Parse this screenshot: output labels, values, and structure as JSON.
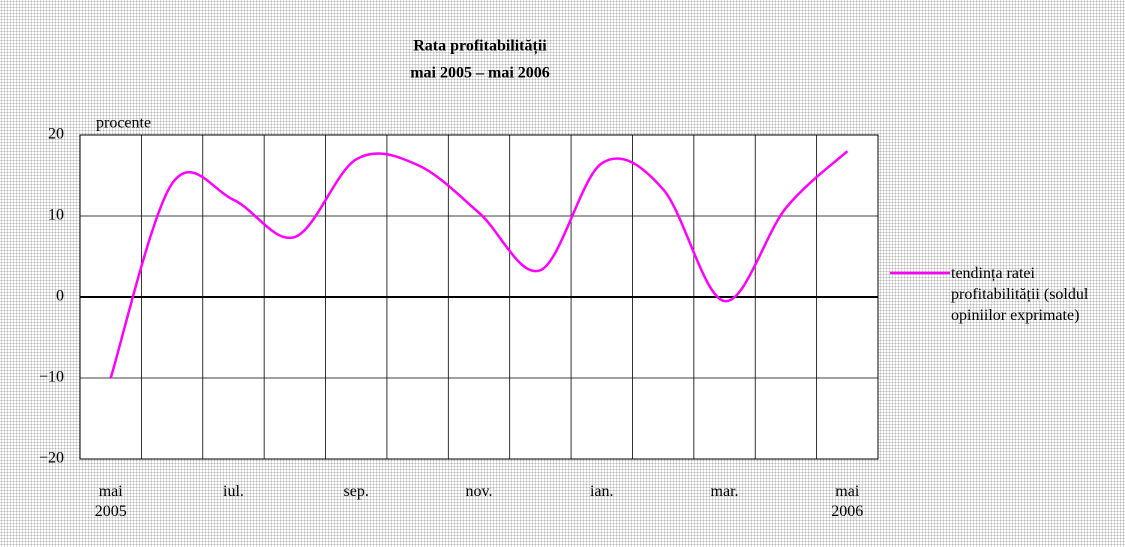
{
  "chart_data": {
    "type": "line",
    "title": "Rata profitabilității",
    "subtitle": "mai 2005 – mai 2006",
    "y_label": "procente",
    "categories": [
      "mai\n2005",
      null,
      "iul.",
      null,
      "sep.",
      null,
      "nov.",
      null,
      "ian.",
      null,
      "mar.",
      null,
      "mai\n2006"
    ],
    "series": [
      {
        "name": "tendința ratei profitabilității (soldul opiniilor exprimate)",
        "color": "#ff00ff",
        "values": [
          -10,
          14,
          12,
          7.4,
          17,
          16.3,
          10.4,
          3.3,
          16.5,
          13.3,
          -0.5,
          11,
          18
        ]
      }
    ],
    "ylim": [
      -20,
      20
    ],
    "yticks": [
      {
        "value": -20,
        "label": "−20"
      },
      {
        "value": -10,
        "label": "−10"
      },
      0,
      10,
      20
    ],
    "grid": true,
    "legend": "right"
  }
}
